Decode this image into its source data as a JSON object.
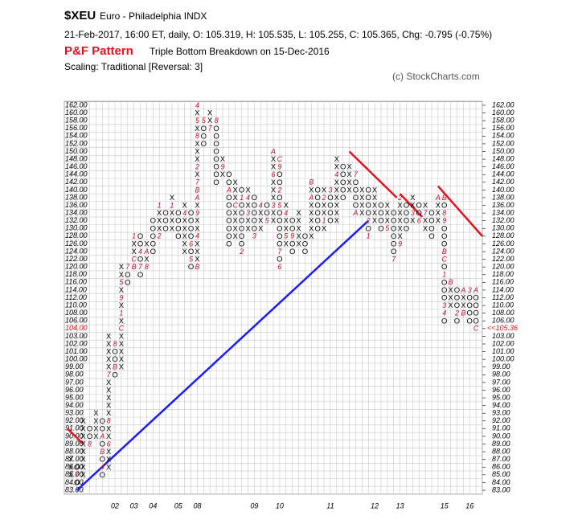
{
  "chart_data": {
    "type": "pnf",
    "symbol": "$XEU",
    "name": "Euro - Philadelphia  INDX",
    "quote": "21-Feb-2017, 16:00 ET, daily, O: 105.319, H: 105.535, L: 105.255, C: 105.365, Chg: -0.795 (-0.75%)",
    "pattern_label": "P&F Pattern",
    "pattern": "Triple Bottom Breakdown on 15-Dec-2016",
    "scaling": "Scaling: Traditional [Reversal: 3]",
    "credit": "(c) StockCharts.com",
    "last_price_label": "<<105.36",
    "highlight_tick": 104,
    "x_labels": [
      "02",
      "03",
      "04",
      "05",
      "08",
      "09",
      "10",
      "11",
      "12",
      "13",
      "15",
      "16"
    ],
    "ylim": [
      83,
      162
    ],
    "yticks": [
      {
        "value": 83,
        "label": "83.00"
      },
      {
        "value": 84,
        "label": "84.00"
      },
      {
        "value": 85,
        "label": "85.00"
      },
      {
        "value": 86,
        "label": "86.00"
      },
      {
        "value": 87,
        "label": "87.00"
      },
      {
        "value": 88,
        "label": "88.00"
      },
      {
        "value": 89,
        "label": "89.00"
      },
      {
        "value": 90,
        "label": "90.00"
      },
      {
        "value": 91,
        "label": "91.00"
      },
      {
        "value": 92,
        "label": "92.00"
      },
      {
        "value": 93,
        "label": "93.00"
      },
      {
        "value": 94,
        "label": "94.00"
      },
      {
        "value": 95,
        "label": "95.00"
      },
      {
        "value": 96,
        "label": "96.00"
      },
      {
        "value": 97,
        "label": "97.00"
      },
      {
        "value": 98,
        "label": "98.00"
      },
      {
        "value": 99,
        "label": "99.00"
      },
      {
        "value": 100,
        "label": "100.00"
      },
      {
        "value": 101,
        "label": "101.00"
      },
      {
        "value": 102,
        "label": "102.00"
      },
      {
        "value": 103,
        "label": "103.00"
      },
      {
        "value": 104,
        "label": "104.00"
      },
      {
        "value": 106,
        "label": "106.00"
      },
      {
        "value": 108,
        "label": "108.00"
      },
      {
        "value": 110,
        "label": "110.00"
      },
      {
        "value": 112,
        "label": "112.00"
      },
      {
        "value": 114,
        "label": "114.00"
      },
      {
        "value": 116,
        "label": "116.00"
      },
      {
        "value": 118,
        "label": "118.00"
      },
      {
        "value": 120,
        "label": "120.00"
      },
      {
        "value": 122,
        "label": "122.00"
      },
      {
        "value": 124,
        "label": "124.00"
      },
      {
        "value": 126,
        "label": "126.00"
      },
      {
        "value": 128,
        "label": "128.00"
      },
      {
        "value": 130,
        "label": "130.00"
      },
      {
        "value": 132,
        "label": "132.00"
      },
      {
        "value": 134,
        "label": "134.00"
      },
      {
        "value": 136,
        "label": "136.00"
      },
      {
        "value": 138,
        "label": "138.00"
      },
      {
        "value": 140,
        "label": "140.00"
      },
      {
        "value": 142,
        "label": "142.00"
      },
      {
        "value": 144,
        "label": "144.00"
      },
      {
        "value": 146,
        "label": "146.00"
      },
      {
        "value": 148,
        "label": "148.00"
      },
      {
        "value": 150,
        "label": "150.00"
      },
      {
        "value": 152,
        "label": "152.00"
      },
      {
        "value": 154,
        "label": "154.00"
      },
      {
        "value": 156,
        "label": "156.00"
      },
      {
        "value": 158,
        "label": "158.00"
      },
      {
        "value": 160,
        "label": "160.00"
      },
      {
        "value": 162,
        "label": "162.00"
      }
    ],
    "columns": [
      {
        "bottom": 85,
        "cells": [
          "X",
          "X",
          "X"
        ]
      },
      {
        "bottom": 84,
        "cells": [
          "O",
          "7",
          "O"
        ]
      },
      {
        "bottom": 85,
        "cells": [
          "X",
          "X",
          "X",
          "X",
          "X",
          "X",
          "X",
          "X"
        ]
      },
      {
        "bottom": 89,
        "cells": [
          "8",
          "O",
          "O"
        ]
      },
      {
        "bottom": 90,
        "cells": [
          "X",
          "X",
          "X",
          "X"
        ]
      },
      {
        "bottom": 85,
        "cells": [
          "O",
          "4",
          "O",
          "B",
          "O",
          "A",
          "O",
          "O"
        ]
      },
      {
        "bottom": 86,
        "cells": [
          "X",
          "X",
          "X",
          "6",
          "X",
          "X",
          "8",
          "X",
          "X",
          "X",
          "X",
          "X",
          "7",
          "X",
          "X",
          "X",
          "X",
          "X"
        ]
      },
      {
        "bottom": 98,
        "cells": [
          "O",
          "B",
          "O",
          "O",
          "8"
        ]
      },
      {
        "bottom": 99,
        "cells": [
          "X",
          "X",
          "X",
          "X",
          "X",
          "C",
          "X",
          "1",
          "X",
          "9",
          "X",
          "5",
          "X",
          "X"
        ]
      },
      {
        "bottom": 116,
        "cells": [
          "O",
          "O",
          "7"
        ]
      },
      {
        "bottom": 120,
        "cells": [
          "B",
          "C",
          "X",
          "X",
          "1"
        ]
      },
      {
        "bottom": 118,
        "cells": [
          "O",
          "7",
          "O",
          "4",
          "O",
          "O"
        ]
      },
      {
        "bottom": 120,
        "cells": [
          "8",
          "X",
          "A",
          "X"
        ]
      },
      {
        "bottom": 124,
        "cells": [
          "O",
          "O",
          "O",
          "O",
          "O"
        ]
      },
      {
        "bottom": 128,
        "cells": [
          "2",
          "X",
          "X",
          "X",
          "1"
        ]
      },
      {
        "bottom": 130,
        "cells": [
          "O",
          "O",
          "O"
        ]
      },
      {
        "bottom": 130,
        "cells": [
          "X",
          "X",
          "X",
          "1",
          "X"
        ]
      },
      {
        "bottom": 128,
        "cells": [
          "O",
          "O",
          "O",
          "O"
        ]
      },
      {
        "bottom": 124,
        "cells": [
          "X",
          "X",
          "X",
          "X",
          "X",
          "4",
          "X"
        ]
      },
      {
        "bottom": 120,
        "cells": [
          "O",
          "5",
          "O",
          "6",
          "O",
          "O",
          "O",
          "O"
        ]
      },
      {
        "bottom": 120,
        "cells": [
          "B",
          "X",
          "X",
          "X",
          "4",
          "X",
          "X",
          "9",
          "X",
          "A",
          "B",
          "7",
          "X",
          "2",
          "X",
          "X",
          "X",
          "8",
          "X",
          "5",
          "X",
          "4"
        ]
      },
      {
        "bottom": 152,
        "cells": [
          "O",
          "O",
          "O",
          "5"
        ]
      },
      {
        "bottom": 156,
        "cells": [
          "7",
          "X",
          "X"
        ]
      },
      {
        "bottom": 142,
        "cells": [
          "O",
          "O",
          "O",
          "O",
          "O",
          "O",
          "O",
          "O",
          "8"
        ]
      },
      {
        "bottom": 144,
        "cells": [
          "X",
          "9",
          "X"
        ]
      },
      {
        "bottom": 126,
        "cells": [
          "O",
          "O",
          "O",
          "O",
          "O",
          "O",
          "O",
          "A",
          "O",
          "O"
        ]
      },
      {
        "bottom": 128,
        "cells": [
          "X",
          "X",
          "X",
          "X",
          "C",
          "X",
          "X",
          "X"
        ]
      },
      {
        "bottom": 124,
        "cells": [
          "2",
          "O",
          "O",
          "O",
          "O",
          "O",
          "O",
          "1",
          "O"
        ]
      },
      {
        "bottom": 130,
        "cells": [
          "X",
          "X",
          "3",
          "X",
          "4",
          "X"
        ]
      },
      {
        "bottom": 128,
        "cells": [
          "3",
          "O",
          "O",
          "O",
          "O",
          "O"
        ]
      },
      {
        "bottom": 130,
        "cells": [
          "X",
          "X",
          "X",
          "4"
        ]
      },
      {
        "bottom": 132,
        "cells": [
          "5",
          "O",
          "O"
        ]
      },
      {
        "bottom": 132,
        "cells": [
          "X",
          "X",
          "3",
          "X",
          "X",
          "X",
          "6",
          "X",
          "X",
          "A"
        ]
      },
      {
        "bottom": 120,
        "cells": [
          "6",
          "O",
          "7",
          "O",
          "O",
          "O",
          "O",
          "O",
          "5",
          "O",
          "2",
          "O",
          "O",
          "9",
          "C"
        ]
      },
      {
        "bottom": 126,
        "cells": [
          "X",
          "5",
          "X",
          "X",
          "4",
          "X"
        ]
      },
      {
        "bottom": 124,
        "cells": [
          "O",
          "O",
          "9",
          "O",
          "O"
        ]
      },
      {
        "bottom": 126,
        "cells": [
          "X",
          "X",
          "X",
          "X",
          "X"
        ]
      },
      {
        "bottom": 124,
        "cells": [
          "O",
          "O",
          "O"
        ]
      },
      {
        "bottom": 128,
        "cells": [
          "X",
          "X",
          "X",
          "X",
          "X",
          "A",
          "X",
          "B"
        ]
      },
      {
        "bottom": 130,
        "cells": [
          "O",
          "O",
          "O",
          "O",
          "O",
          "O"
        ]
      },
      {
        "bottom": 130,
        "cells": [
          "X",
          "1",
          "X",
          "X",
          "2",
          "X"
        ]
      },
      {
        "bottom": 132,
        "cells": [
          "O",
          "O",
          "O",
          "O",
          "3"
        ]
      },
      {
        "bottom": 132,
        "cells": [
          "X",
          "X",
          "X",
          "X",
          "X",
          "X",
          "4",
          "X",
          "X"
        ]
      },
      {
        "bottom": 138,
        "cells": [
          "O",
          "O",
          "O",
          "O",
          "O"
        ]
      },
      {
        "bottom": 140,
        "cells": [
          "X",
          "X",
          "X",
          "X"
        ]
      },
      {
        "bottom": 134,
        "cells": [
          "A",
          "O",
          "O",
          "O",
          "O",
          "7"
        ]
      },
      {
        "bottom": 134,
        "cells": [
          "X",
          "X",
          "X",
          "X"
        ]
      },
      {
        "bottom": 128,
        "cells": [
          "1",
          "O",
          "2",
          "O",
          "O",
          "O",
          "O"
        ]
      },
      {
        "bottom": 132,
        "cells": [
          "X",
          "X",
          "X",
          "X",
          "X"
        ]
      },
      {
        "bottom": 130,
        "cells": [
          "O",
          "O",
          "O",
          "O"
        ]
      },
      {
        "bottom": 130,
        "cells": [
          "5",
          "X",
          "X",
          "X"
        ]
      },
      {
        "bottom": 122,
        "cells": [
          "7",
          "O",
          "O",
          "O",
          "O",
          "O",
          "O"
        ]
      },
      {
        "bottom": 126,
        "cells": [
          "9",
          "X",
          "X",
          "X",
          "X",
          "X",
          "2"
        ]
      },
      {
        "bottom": 130,
        "cells": [
          "O",
          "O",
          "O",
          "O"
        ]
      },
      {
        "bottom": 132,
        "cells": [
          "X",
          "3",
          "X",
          "X"
        ]
      },
      {
        "bottom": 132,
        "cells": [
          "6",
          "O",
          "O"
        ]
      },
      {
        "bottom": 130,
        "cells": [
          "X",
          "X",
          "7",
          "X"
        ]
      },
      {
        "bottom": 128,
        "cells": [
          "O",
          "O",
          "O",
          "O"
        ]
      },
      {
        "bottom": 132,
        "cells": [
          "X",
          "X",
          "X",
          "A"
        ]
      },
      {
        "bottom": 106,
        "cells": [
          "O",
          "4",
          "3",
          "O",
          "O",
          "O",
          "1",
          "O",
          "C",
          "B",
          "O",
          "O",
          "O",
          "9",
          "8",
          "O",
          "B"
        ]
      },
      {
        "bottom": 110,
        "cells": [
          "X",
          "X",
          "X",
          "B"
        ]
      },
      {
        "bottom": 106,
        "cells": [
          "O",
          "2",
          "O",
          "O",
          "O"
        ]
      },
      {
        "bottom": 108,
        "cells": [
          "B",
          "X",
          "X",
          "A"
        ]
      },
      {
        "bottom": 106,
        "cells": [
          "O",
          "O",
          "O",
          "O",
          "3"
        ]
      },
      {
        "bottom": 104,
        "cells": [
          "C",
          "O",
          "O",
          "O",
          "O",
          "A"
        ]
      }
    ]
  }
}
